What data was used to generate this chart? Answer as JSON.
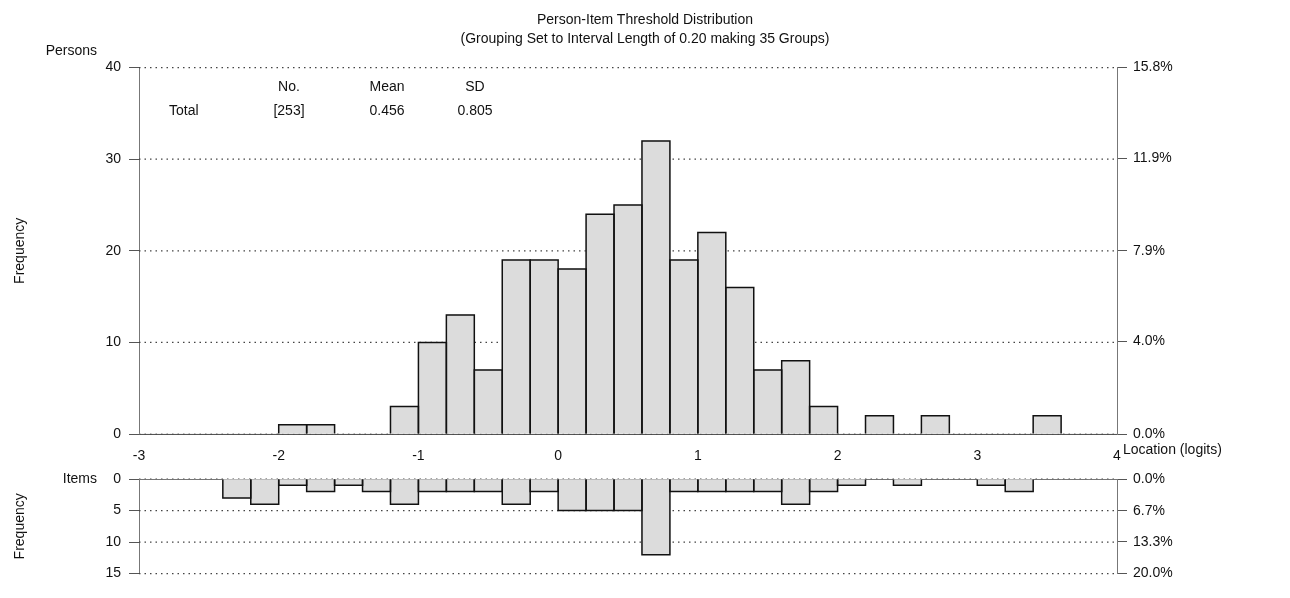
{
  "chart_data": [
    {
      "type": "histogram",
      "title": "Person-Item Threshold Distribution",
      "subtitle": "(Grouping Set to Interval Length of 0.20 making 35 Groups)",
      "xlabel": "Location (logits)",
      "ylabel": "Frequency",
      "annotations": [
        "Persons",
        "No.",
        "Mean",
        "SD",
        "Total",
        "[253]",
        "0.456",
        "0.805"
      ],
      "bins": [
        -3,
        -2.8,
        -2.6,
        -2.4,
        -2.2,
        -2,
        -1.8,
        -1.6,
        -1.4,
        -1.2,
        -1,
        -0.8,
        -0.6,
        -0.4,
        -0.2,
        0,
        0.2,
        0.4,
        0.6,
        0.8,
        1,
        1.2,
        1.4,
        1.6,
        1.8,
        2,
        2.2,
        2.4,
        2.6,
        2.8,
        3,
        3.2,
        3.4,
        3.6,
        3.8,
        4
      ],
      "values": [
        0,
        0,
        0,
        0,
        0,
        1,
        1,
        0,
        0,
        3,
        10,
        13,
        7,
        19,
        19,
        18,
        24,
        25,
        32,
        19,
        22,
        16,
        7,
        8,
        3,
        0,
        2,
        0,
        2,
        0,
        0,
        0,
        2,
        0,
        0
      ],
      "color": "#dcdcdc",
      "xlim": [
        -3,
        4
      ],
      "xticks": [
        -3,
        -2,
        -1,
        0,
        1,
        2,
        3,
        4
      ],
      "ylim": [
        0,
        40
      ],
      "yticks": [
        0,
        10,
        20,
        30,
        40
      ],
      "y2lim": [
        0,
        15.8
      ],
      "y2ticks": [
        {
          "value": 0,
          "label": "0.0%"
        },
        {
          "value": 4,
          "label": "4.0%"
        },
        {
          "value": 7.9,
          "label": "7.9%"
        },
        {
          "value": 11.9,
          "label": "11.9%"
        },
        {
          "value": 15.8,
          "label": "15.8%"
        }
      ],
      "grid": "y"
    },
    {
      "type": "histogram",
      "ylabel": "Frequency",
      "annotations": [
        "Items"
      ],
      "bins": [
        -3,
        -2.8,
        -2.6,
        -2.4,
        -2.2,
        -2,
        -1.8,
        -1.6,
        -1.4,
        -1.2,
        -1,
        -0.8,
        -0.6,
        -0.4,
        -0.2,
        0,
        0.2,
        0.4,
        0.6,
        0.8,
        1,
        1.2,
        1.4,
        1.6,
        1.8,
        2,
        2.2,
        2.4,
        2.6,
        2.8,
        3,
        3.2,
        3.4,
        3.6,
        3.8,
        4
      ],
      "values": [
        0,
        0,
        0,
        3,
        4,
        1,
        2,
        1,
        2,
        4,
        2,
        2,
        2,
        4,
        2,
        5,
        5,
        5,
        12,
        2,
        2,
        2,
        2,
        4,
        2,
        1,
        0,
        1,
        0,
        0,
        1,
        2,
        0,
        0,
        0
      ],
      "color": "#dcdcdc",
      "xlim": [
        -3,
        4
      ],
      "ylim": [
        15,
        0
      ],
      "yticks": [
        0,
        5,
        10,
        15
      ],
      "y2lim": [
        20,
        0
      ],
      "y2ticks": [
        {
          "value": 0,
          "label": "0.0%"
        },
        {
          "value": 6.7,
          "label": "6.7%"
        },
        {
          "value": 13.3,
          "label": "13.3%"
        },
        {
          "value": 20,
          "label": "20.0%"
        }
      ],
      "tick_labels": "y",
      "grid": "y"
    }
  ]
}
